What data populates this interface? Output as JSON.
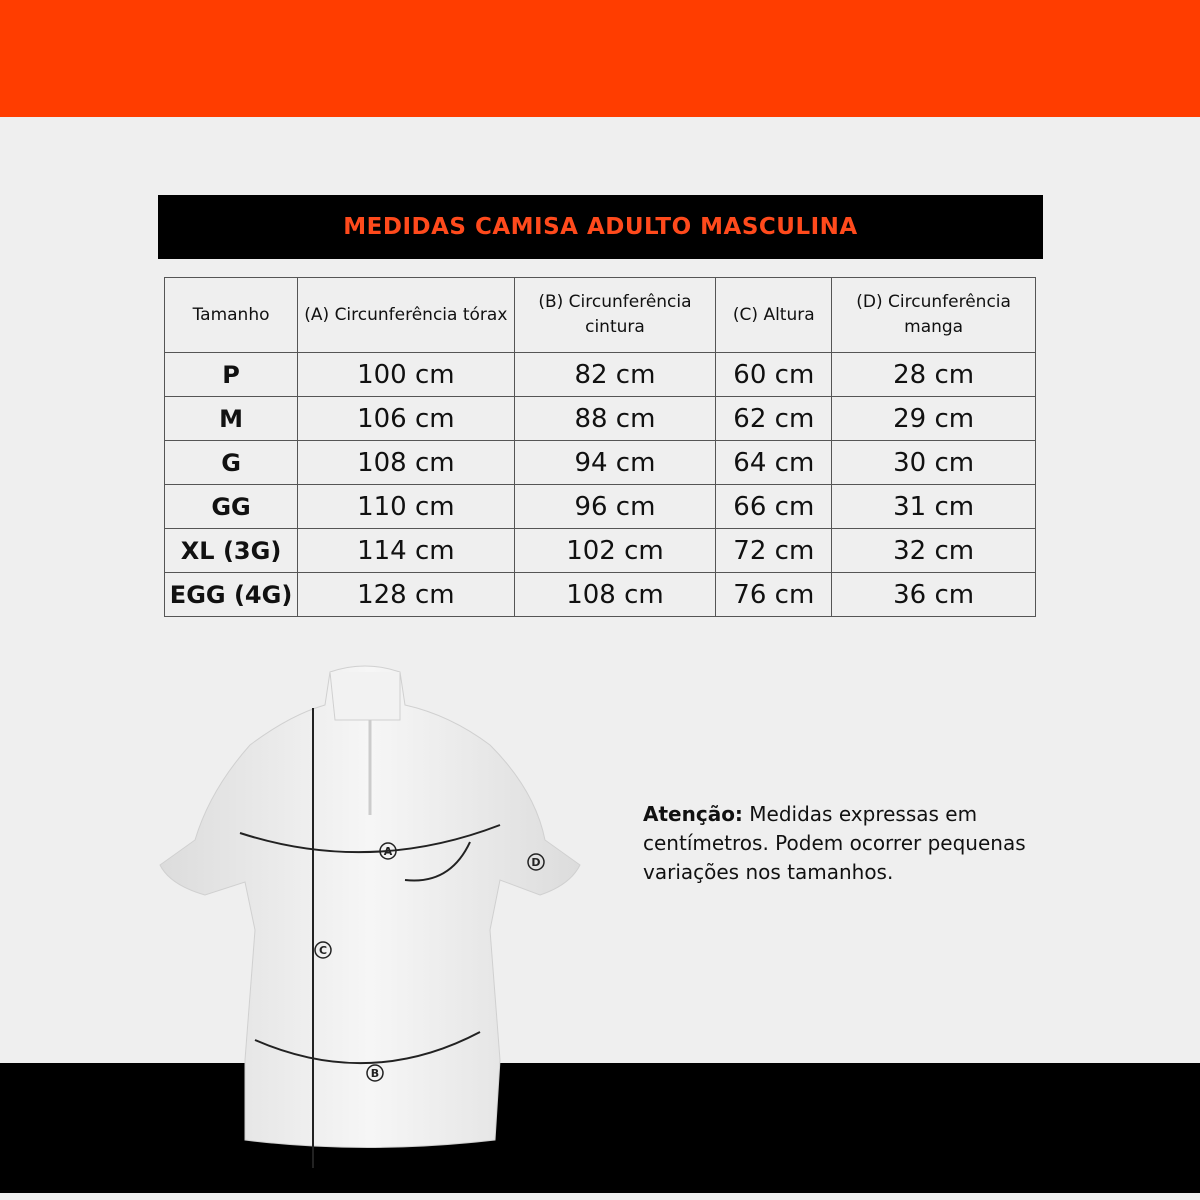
{
  "colors": {
    "accent": "#ff3d00",
    "title_text": "#ff4a1c",
    "background": "#efefef",
    "band_dark": "#000000"
  },
  "title": "MEDIDAS CAMISA ADULTO MASCULINA",
  "table": {
    "headers": [
      "Tamanho",
      "(A) Circunferência tórax",
      "(B) Circunferência cintura",
      "(C) Altura",
      "(D) Circunferência manga"
    ],
    "rows": [
      [
        "P",
        "100 cm",
        "82 cm",
        "60 cm",
        "28 cm"
      ],
      [
        "M",
        "106 cm",
        "88 cm",
        "62 cm",
        "29 cm"
      ],
      [
        "G",
        "108 cm",
        "94 cm",
        "64 cm",
        "30 cm"
      ],
      [
        "GG",
        "110 cm",
        "96 cm",
        "66 cm",
        "31 cm"
      ],
      [
        "XL (3G)",
        "114 cm",
        "102 cm",
        "72 cm",
        "32 cm"
      ],
      [
        "EGG (4G)",
        "128 cm",
        "108 cm",
        "76 cm",
        "36 cm"
      ]
    ]
  },
  "diagram": {
    "labels": [
      "A",
      "B",
      "C",
      "D"
    ]
  },
  "note": {
    "bold": "Atenção:",
    "text": " Medidas expressas em centímetros. Podem ocorrer pequenas variações nos tamanhos."
  }
}
